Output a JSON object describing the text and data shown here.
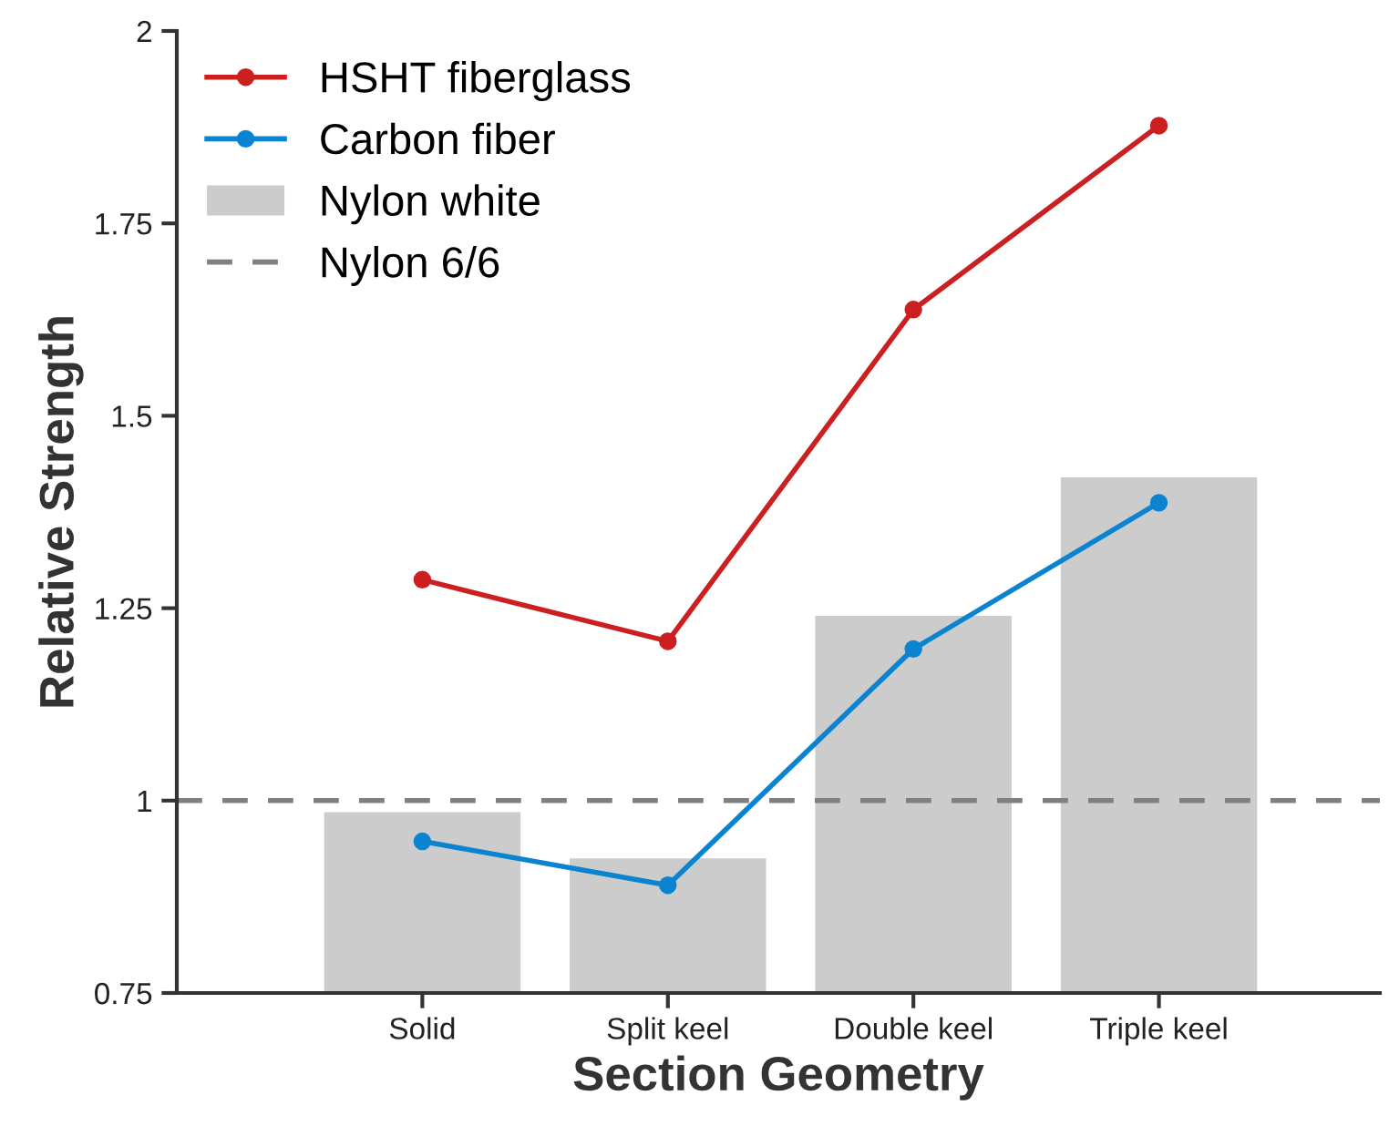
{
  "chart_data": {
    "type": "bar",
    "xlabel": "Section Geometry",
    "ylabel": "Relative Strength",
    "categories": [
      "Solid",
      "Split keel",
      "Double keel",
      "Triple keel"
    ],
    "series": [
      {
        "name": "HSHT fiberglass",
        "type": "line",
        "color": "#cc1f1f",
        "values": [
          1.287,
          1.207,
          1.638,
          1.877
        ]
      },
      {
        "name": "Carbon fiber",
        "type": "line",
        "color": "#0a84d0",
        "values": [
          0.947,
          0.89,
          1.197,
          1.387
        ]
      },
      {
        "name": "Nylon white",
        "color": "#cccccc",
        "values": [
          0.985,
          0.925,
          1.24,
          1.42
        ]
      }
    ],
    "ylim": [
      0.75,
      2
    ],
    "yticks": [
      0.75,
      1,
      1.25,
      1.5,
      1.75,
      2
    ],
    "ref_lines": [
      {
        "axis": "y",
        "value": 1,
        "label": "Nylon 6/6",
        "color": "#808080",
        "line_style": "dashed"
      }
    ],
    "legend": "top left",
    "marker": "circle",
    "grid": false
  }
}
